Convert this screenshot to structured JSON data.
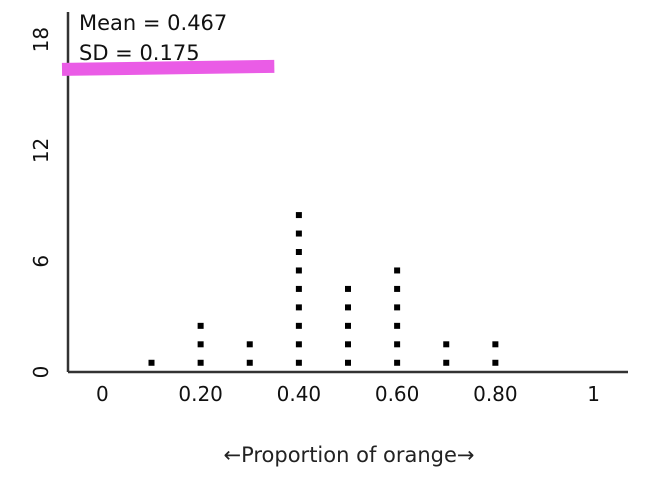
{
  "chart_data": {
    "type": "dotplot",
    "title": "",
    "xlabel": "←Proportion of orange→",
    "ylabel": "",
    "xlim": [
      -0.07,
      1.07
    ],
    "ylim": [
      0,
      19.5
    ],
    "x_ticks": [
      {
        "value": 0,
        "label": "0"
      },
      {
        "value": 0.2,
        "label": "0.20"
      },
      {
        "value": 0.4,
        "label": "0.40"
      },
      {
        "value": 0.6,
        "label": "0.60"
      },
      {
        "value": 0.8,
        "label": "0.80"
      },
      {
        "value": 1,
        "label": "1"
      }
    ],
    "y_ticks": [
      {
        "value": 0,
        "label": "0"
      },
      {
        "value": 6,
        "label": "6"
      },
      {
        "value": 12,
        "label": "12"
      },
      {
        "value": 18,
        "label": "18"
      }
    ],
    "points": [
      {
        "x": 0.1,
        "count": 1
      },
      {
        "x": 0.2,
        "count": 3
      },
      {
        "x": 0.3,
        "count": 2
      },
      {
        "x": 0.4,
        "count": 9
      },
      {
        "x": 0.5,
        "count": 5
      },
      {
        "x": 0.6,
        "count": 6
      },
      {
        "x": 0.7,
        "count": 2
      },
      {
        "x": 0.8,
        "count": 2
      }
    ],
    "stats": {
      "mean_text": "Mean = 0.467",
      "sd_text": "SD = 0.175"
    },
    "highlight_line": {
      "y": 16.5,
      "x_start": -0.07,
      "x_end": 0.35,
      "color": "#ea5ce6"
    },
    "grid": false,
    "legend": "none",
    "colors": {
      "axis": "#333333",
      "dot": "#000000"
    }
  }
}
